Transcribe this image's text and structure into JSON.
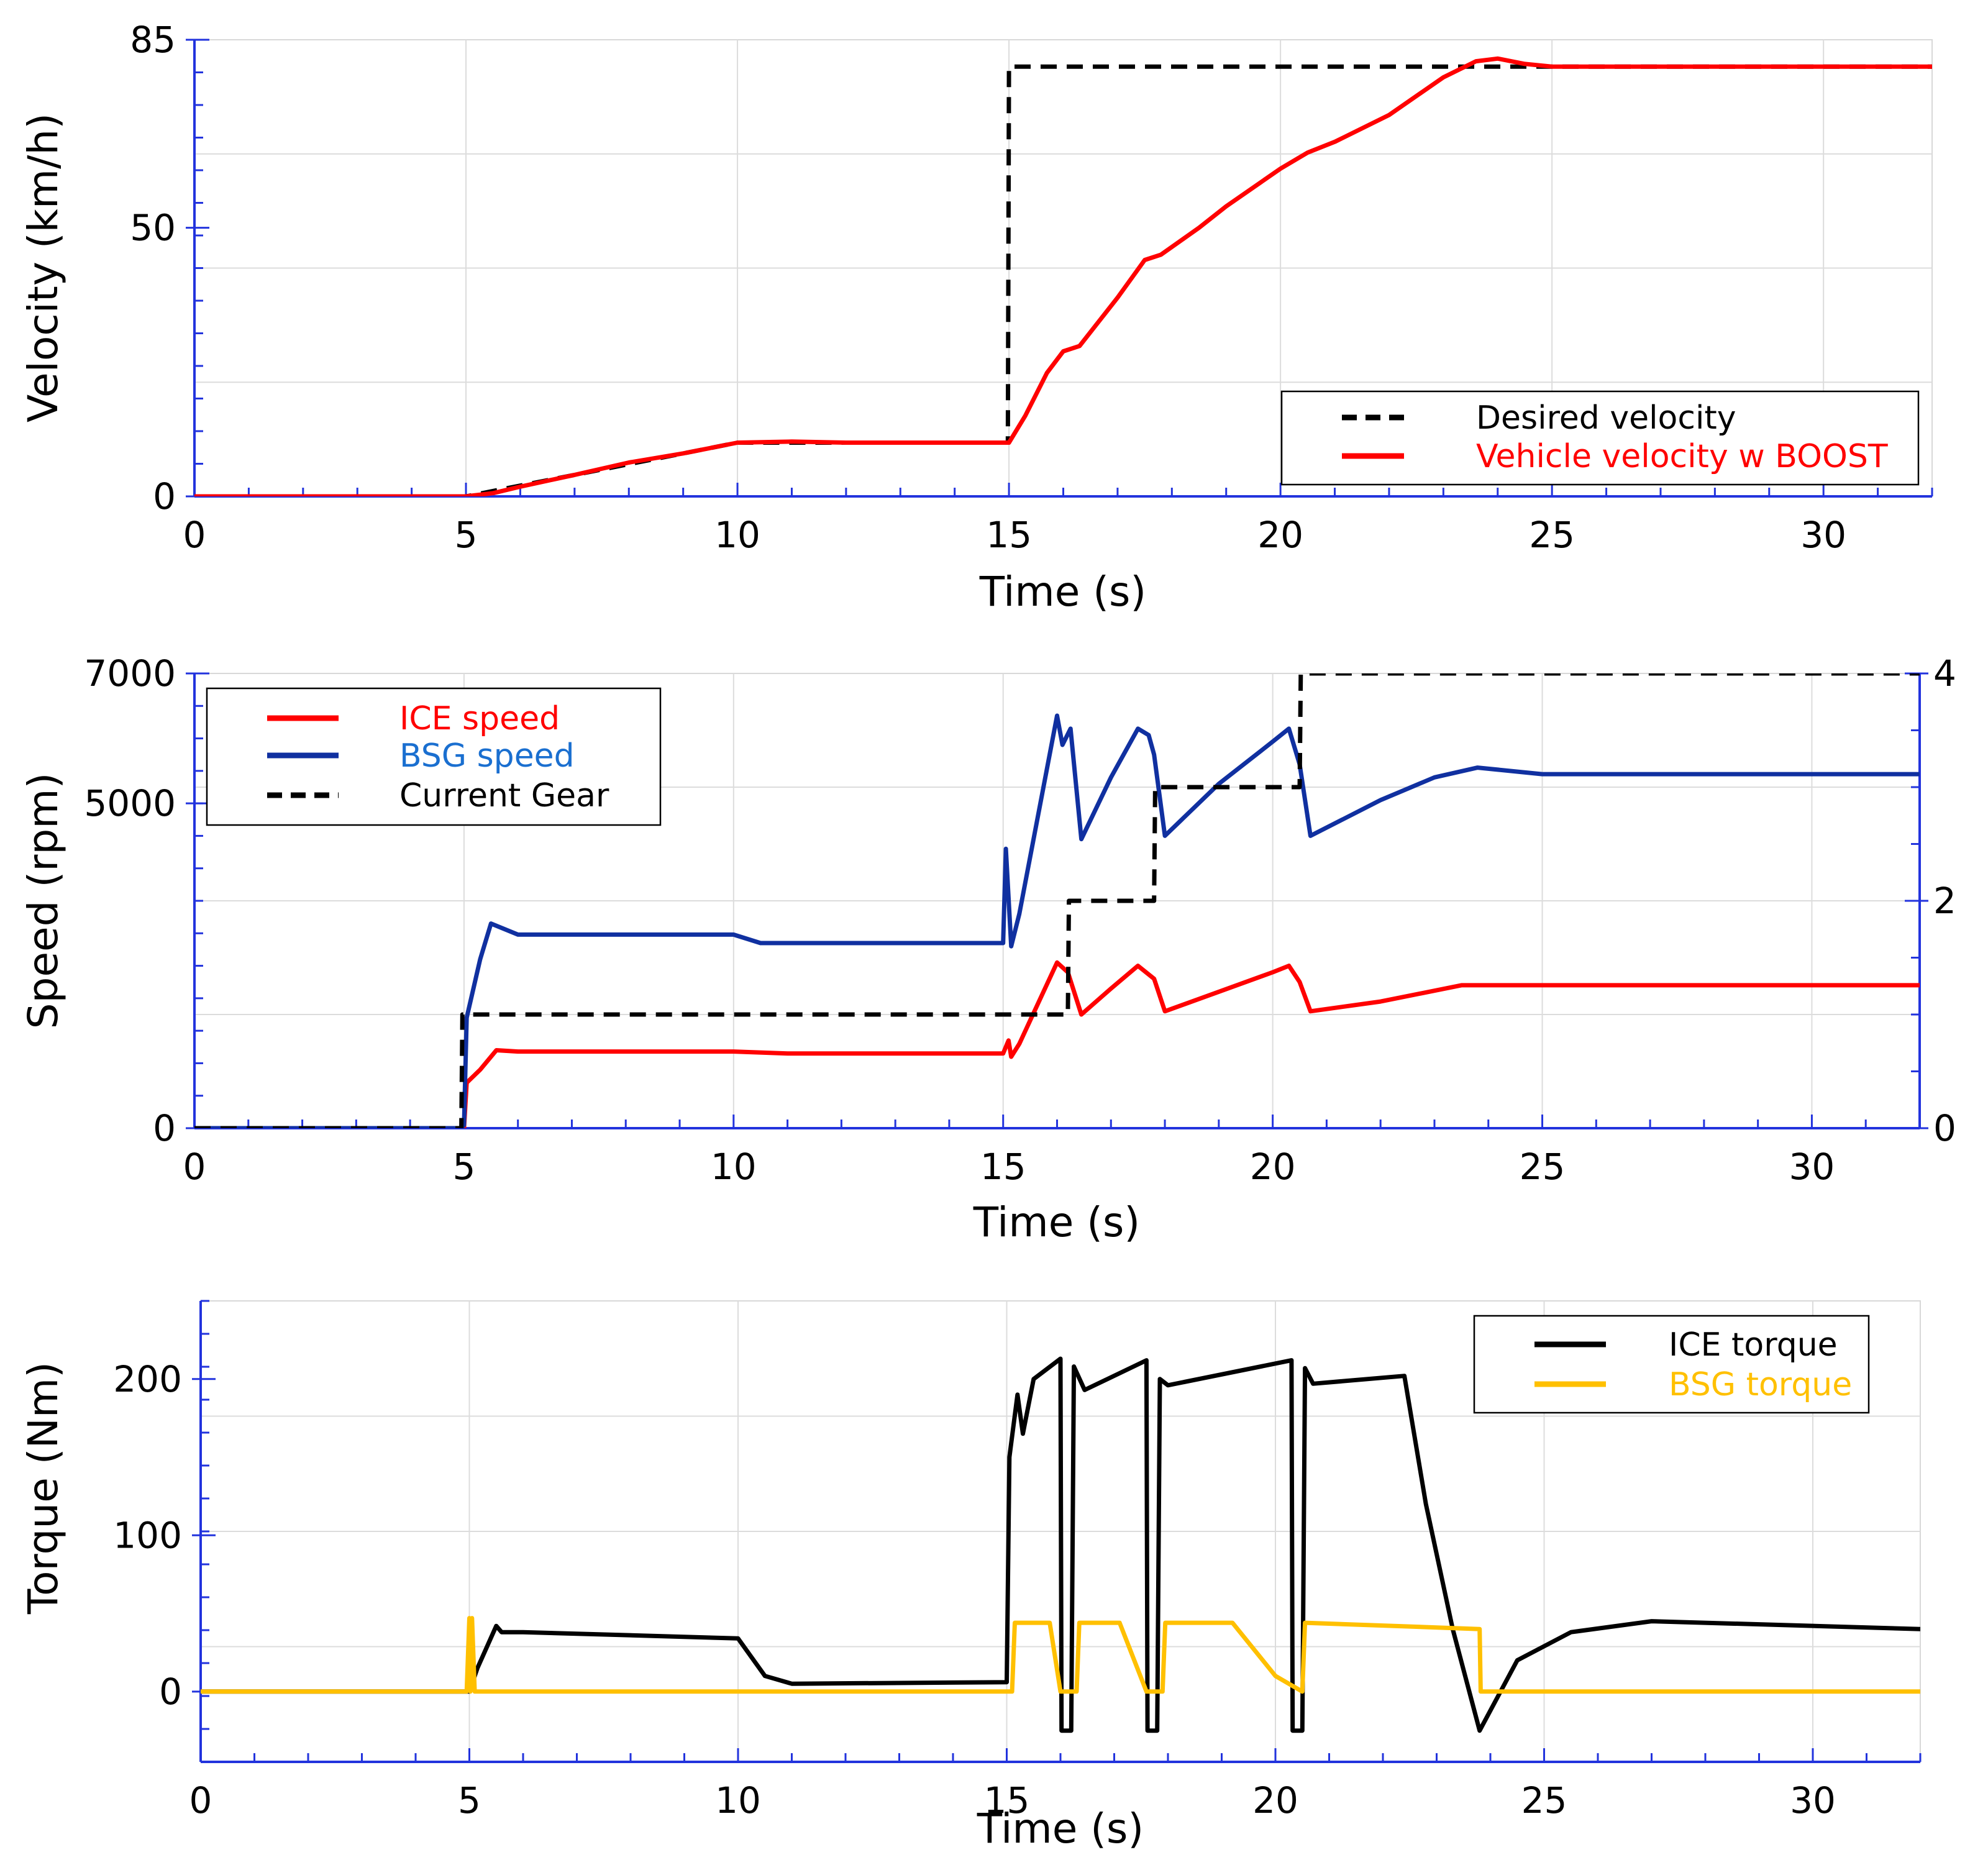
{
  "chart_data": [
    {
      "type": "line",
      "xlabel": "Time (s)",
      "ylabel": "Velocity (km/h)",
      "xlim": [
        0,
        32
      ],
      "ylim": [
        0,
        85
      ],
      "xticks": [
        "0",
        "5",
        "10",
        "15",
        "20",
        "25",
        "30"
      ],
      "xtick_values": [
        0,
        5,
        10,
        15,
        20,
        25,
        30
      ],
      "yticks": [
        "0",
        "50",
        "85"
      ],
      "ytick_values": [
        0,
        50,
        85
      ],
      "grid": true,
      "legend_position": "bottom-right",
      "series": [
        {
          "name": "Desired velocity",
          "color": "#000000",
          "style": "dashed",
          "points": [
            [
              0,
              0
            ],
            [
              5,
              0
            ],
            [
              10,
              10
            ],
            [
              14.98,
              10
            ],
            [
              15,
              80
            ],
            [
              32,
              80
            ]
          ]
        },
        {
          "name": "Vehicle velocity w BOOST",
          "color": "#ff0000",
          "style": "solid",
          "points": [
            [
              0,
              0
            ],
            [
              5,
              0
            ],
            [
              5.5,
              0.6
            ],
            [
              6,
              1.8
            ],
            [
              7,
              4
            ],
            [
              8,
              6.3
            ],
            [
              9,
              8
            ],
            [
              10,
              10
            ],
            [
              11,
              10.2
            ],
            [
              12,
              10
            ],
            [
              14,
              10
            ],
            [
              15,
              10
            ],
            [
              15.3,
              15
            ],
            [
              15.7,
              23
            ],
            [
              16,
              27
            ],
            [
              16.3,
              28
            ],
            [
              17,
              37
            ],
            [
              17.5,
              44
            ],
            [
              17.8,
              45
            ],
            [
              18.5,
              50
            ],
            [
              19,
              54
            ],
            [
              20,
              61
            ],
            [
              20.5,
              64
            ],
            [
              21,
              66
            ],
            [
              22,
              71
            ],
            [
              23,
              78
            ],
            [
              23.6,
              81
            ],
            [
              24,
              81.5
            ],
            [
              24.5,
              80.5
            ],
            [
              25,
              80
            ],
            [
              32,
              80
            ]
          ]
        }
      ]
    },
    {
      "type": "line",
      "xlabel": "Time (s)",
      "ylabel": "Speed (rpm)",
      "xlim": [
        0,
        32
      ],
      "ylim": [
        0,
        7000
      ],
      "y2lim": [
        0,
        4
      ],
      "xticks": [
        "0",
        "5",
        "10",
        "15",
        "20",
        "25",
        "30"
      ],
      "xtick_values": [
        0,
        5,
        10,
        15,
        20,
        25,
        30
      ],
      "yticks": [
        "0",
        "5000",
        "7000"
      ],
      "ytick_values": [
        0,
        5000,
        7000
      ],
      "y2ticks": [
        "0",
        "2",
        "4"
      ],
      "y2tick_values": [
        0,
        2,
        4
      ],
      "grid": true,
      "legend_position": "top-left",
      "series": [
        {
          "name": "ICE speed",
          "color": "#ff0000",
          "style": "solid",
          "axis": "left",
          "points": [
            [
              0,
              0
            ],
            [
              4.95,
              0
            ],
            [
              5,
              0
            ],
            [
              5.05,
              700
            ],
            [
              5.3,
              900
            ],
            [
              5.6,
              1200
            ],
            [
              6,
              1180
            ],
            [
              10,
              1180
            ],
            [
              11,
              1150
            ],
            [
              15,
              1150
            ],
            [
              15.1,
              1350
            ],
            [
              15.15,
              1100
            ],
            [
              15.3,
              1300
            ],
            [
              16,
              2550
            ],
            [
              16.2,
              2400
            ],
            [
              16.45,
              1750
            ],
            [
              17,
              2150
            ],
            [
              17.5,
              2500
            ],
            [
              17.8,
              2300
            ],
            [
              18,
              1800
            ],
            [
              19,
              2100
            ],
            [
              20,
              2400
            ],
            [
              20.3,
              2500
            ],
            [
              20.5,
              2250
            ],
            [
              20.7,
              1800
            ],
            [
              22,
              1950
            ],
            [
              23.5,
              2200
            ],
            [
              25,
              2200
            ],
            [
              32,
              2200
            ]
          ]
        },
        {
          "name": "BSG speed",
          "color": "#1030a0",
          "style": "solid",
          "axis": "left",
          "points": [
            [
              0,
              0
            ],
            [
              4.95,
              0
            ],
            [
              5,
              50
            ],
            [
              5.05,
              1700
            ],
            [
              5.3,
              2600
            ],
            [
              5.5,
              3150
            ],
            [
              6,
              2980
            ],
            [
              10,
              2980
            ],
            [
              10.5,
              2850
            ],
            [
              15,
              2850
            ],
            [
              15.05,
              4300
            ],
            [
              15.15,
              2800
            ],
            [
              15.3,
              3300
            ],
            [
              16,
              6350
            ],
            [
              16.1,
              5900
            ],
            [
              16.25,
              6150
            ],
            [
              16.45,
              4450
            ],
            [
              17,
              5400
            ],
            [
              17.5,
              6150
            ],
            [
              17.7,
              6050
            ],
            [
              17.8,
              5750
            ],
            [
              18,
              4500
            ],
            [
              19,
              5300
            ],
            [
              20,
              5950
            ],
            [
              20.3,
              6150
            ],
            [
              20.5,
              5600
            ],
            [
              20.7,
              4500
            ],
            [
              22,
              5050
            ],
            [
              23,
              5400
            ],
            [
              23.8,
              5550
            ],
            [
              25,
              5450
            ],
            [
              32,
              5450
            ]
          ]
        },
        {
          "name": "Current Gear",
          "color": "#000000",
          "style": "dashed",
          "axis": "right",
          "points": [
            [
              0,
              0
            ],
            [
              4.95,
              0
            ],
            [
              4.97,
              1
            ],
            [
              16.2,
              1
            ],
            [
              16.22,
              2
            ],
            [
              17.8,
              2
            ],
            [
              17.82,
              3
            ],
            [
              20.5,
              3
            ],
            [
              20.52,
              4
            ],
            [
              32,
              4
            ]
          ]
        }
      ]
    },
    {
      "type": "line",
      "xlabel": "Time (s)",
      "ylabel": "Torque (Nm)",
      "xlim": [
        0,
        32
      ],
      "ylim": [
        -45,
        250
      ],
      "xticks": [
        "0",
        "5",
        "10",
        "15",
        "20",
        "25",
        "30"
      ],
      "xtick_values": [
        0,
        5,
        10,
        15,
        20,
        25,
        30
      ],
      "yticks": [
        "0",
        "100",
        "200"
      ],
      "ytick_values": [
        0,
        100,
        200
      ],
      "grid": true,
      "legend_position": "top-right",
      "series": [
        {
          "name": "ICE torque",
          "color": "#000000",
          "style": "solid",
          "points": [
            [
              0,
              0
            ],
            [
              5,
              0
            ],
            [
              5.15,
              15
            ],
            [
              5.5,
              42
            ],
            [
              5.6,
              38
            ],
            [
              6,
              38
            ],
            [
              10,
              34
            ],
            [
              10.5,
              10
            ],
            [
              11,
              5
            ],
            [
              15,
              6
            ],
            [
              15.05,
              150
            ],
            [
              15.2,
              190
            ],
            [
              15.3,
              165
            ],
            [
              15.5,
              200
            ],
            [
              16,
              213
            ],
            [
              16.02,
              -25
            ],
            [
              16.2,
              -25
            ],
            [
              16.25,
              208
            ],
            [
              16.45,
              193
            ],
            [
              17.6,
              212
            ],
            [
              17.62,
              -25
            ],
            [
              17.8,
              -25
            ],
            [
              17.85,
              200
            ],
            [
              18,
              196
            ],
            [
              20.3,
              212
            ],
            [
              20.32,
              -25
            ],
            [
              20.5,
              -25
            ],
            [
              20.55,
              207
            ],
            [
              20.7,
              197
            ],
            [
              22.4,
              202
            ],
            [
              22.8,
              120
            ],
            [
              23.3,
              40
            ],
            [
              23.8,
              -25
            ],
            [
              24.5,
              20
            ],
            [
              25.5,
              38
            ],
            [
              27,
              45
            ],
            [
              32,
              40
            ]
          ]
        },
        {
          "name": "BSG torque",
          "color": "#ffc000",
          "style": "solid",
          "points": [
            [
              0,
              0
            ],
            [
              4.95,
              0
            ],
            [
              5,
              47
            ],
            [
              5.02,
              0
            ],
            [
              5.05,
              47
            ],
            [
              5.1,
              0
            ],
            [
              15.1,
              0
            ],
            [
              15.15,
              44
            ],
            [
              15.8,
              44
            ],
            [
              16,
              0
            ],
            [
              16.3,
              0
            ],
            [
              16.35,
              44
            ],
            [
              17.1,
              44
            ],
            [
              17.6,
              0
            ],
            [
              17.9,
              0
            ],
            [
              17.95,
              44
            ],
            [
              19.2,
              44
            ],
            [
              20,
              10
            ],
            [
              20.5,
              0
            ],
            [
              20.55,
              44
            ],
            [
              23.8,
              40
            ],
            [
              23.82,
              0
            ],
            [
              32,
              0
            ]
          ]
        }
      ]
    }
  ]
}
